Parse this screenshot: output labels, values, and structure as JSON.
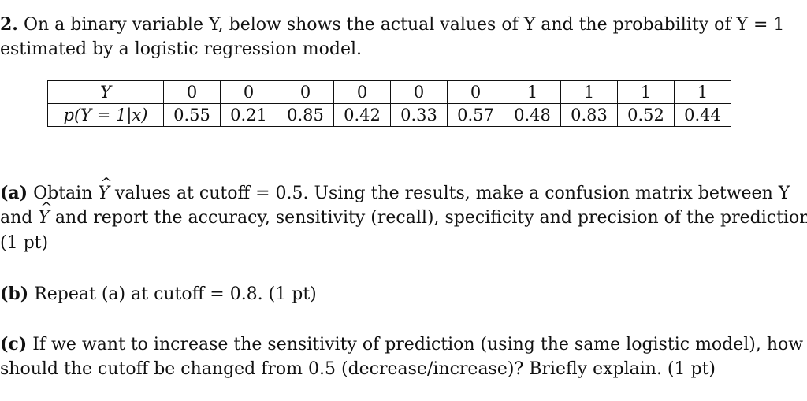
{
  "problem": {
    "number": "2.",
    "intro_line1": "On a binary variable Y, below shows the actual values of Y and the probability of Y = 1",
    "intro_line2": "estimated by a logistic regression model."
  },
  "table": {
    "row_labels": [
      "Y",
      "p(Y = 1|x)"
    ],
    "y_values": [
      "0",
      "0",
      "0",
      "0",
      "0",
      "0",
      "1",
      "1",
      "1",
      "1"
    ],
    "p_values": [
      "0.55",
      "0.21",
      "0.85",
      "0.42",
      "0.33",
      "0.57",
      "0.48",
      "0.83",
      "0.52",
      "0.44"
    ]
  },
  "part_a": {
    "label": "(a)",
    "line1_pre": "Obtain",
    "yhat": "Y",
    "line1_post": "values at cutoff = 0.5. Using the results, make a confusion matrix between Y",
    "line2_pre": "and",
    "line2_post": "and report the accuracy, sensitivity (recall), specificity and precision of the prediction.",
    "line3": "(1 pt)"
  },
  "part_b": {
    "label": "(b)",
    "text": "Repeat (a) at cutoff = 0.8. (1 pt)"
  },
  "part_c": {
    "label": "(c)",
    "line1": "If we want to increase the sensitivity of prediction (using the same logistic model), how",
    "line2": "should the cutoff be changed from 0.5 (decrease/increase)? Briefly explain. (1 pt)"
  }
}
